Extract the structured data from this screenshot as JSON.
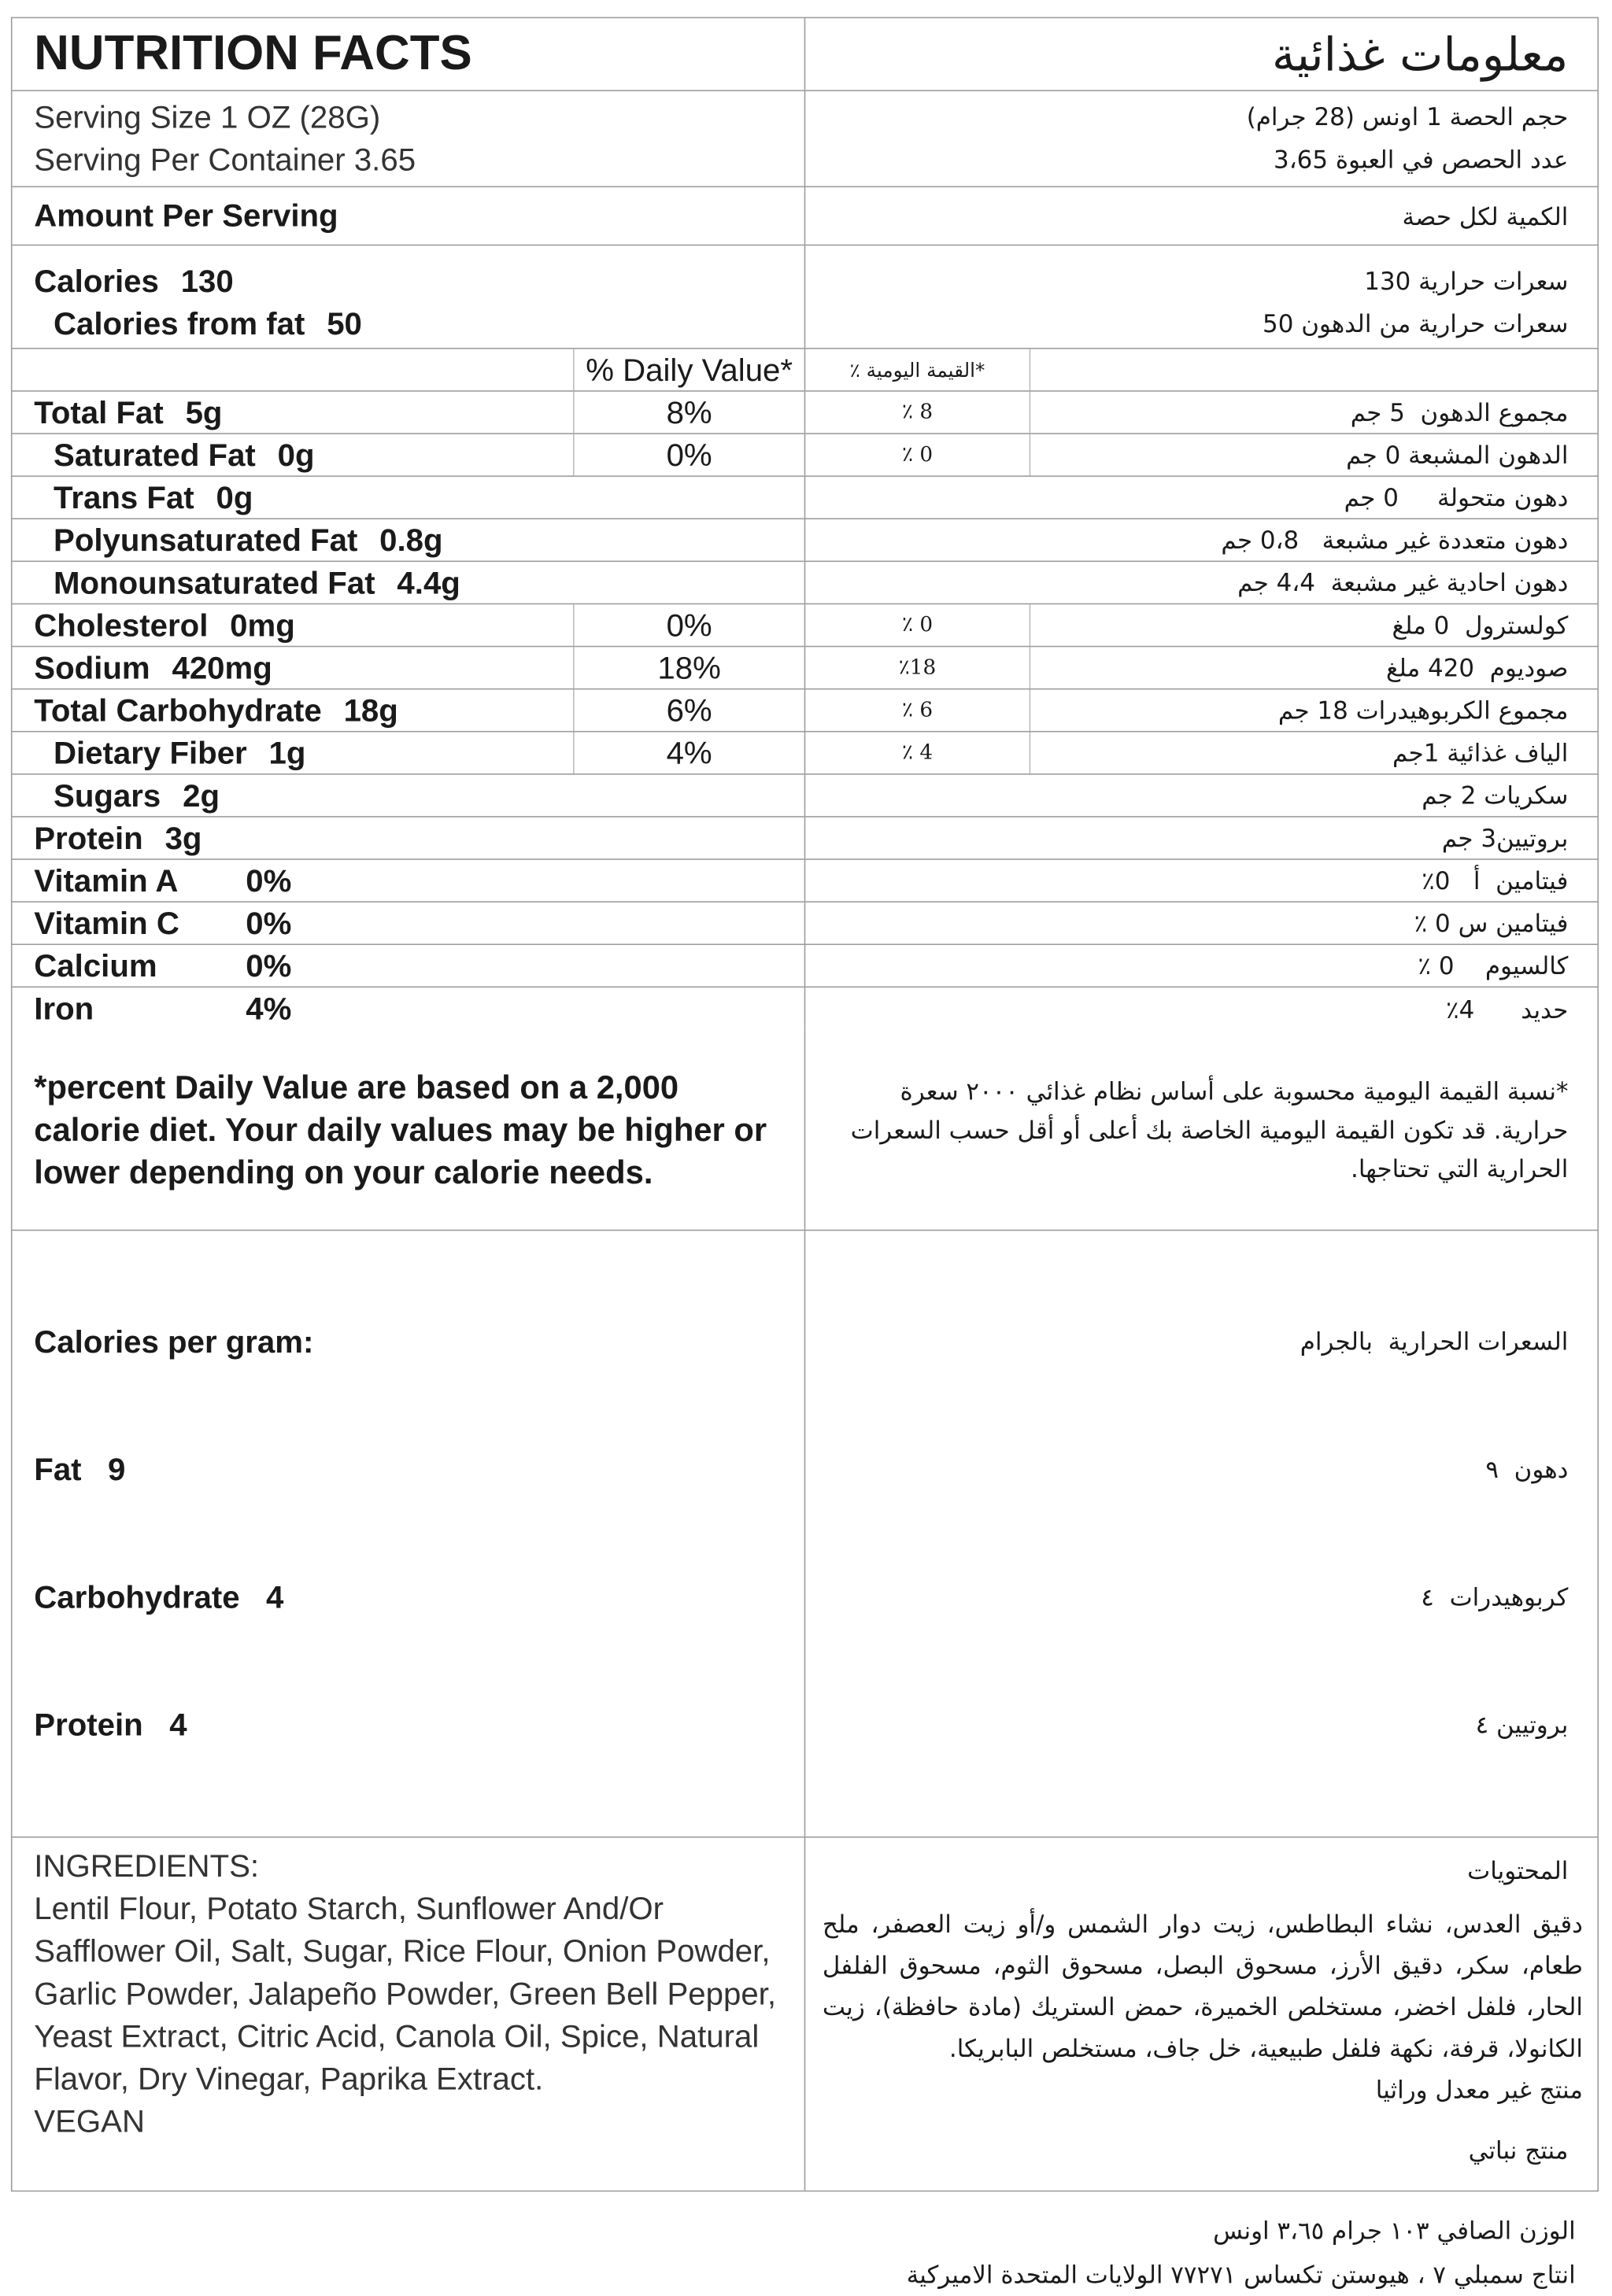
{
  "header": {
    "title_en": "NUTRITION FACTS",
    "title_ar": "معلومات غذائية"
  },
  "serving": {
    "size_en": "Serving Size 1 OZ (28G)",
    "per_container_en": "Serving Per Container 3.65",
    "size_ar": "حجم الحصة 1 اونس (28 جرام)",
    "per_container_ar": "عدد الحصص في العبوة  3،65"
  },
  "amount": {
    "en": "Amount Per Serving",
    "ar": "الكمية لكل حصة"
  },
  "calories": {
    "label_en": "Calories",
    "value": "130",
    "fat_label_en": "Calories from fat",
    "fat_value": "50",
    "ar": "سعرات حرارية  130",
    "fat_ar": "سعرات حرارية من الدهون 50"
  },
  "dv_header": {
    "en": "% Daily Value*",
    "ar": "٪ القيمة اليومية*"
  },
  "nutrients": [
    {
      "label": "Total Fat",
      "amount": "5g",
      "dv": "8%",
      "ar": "مجموع الدهون  5 جم",
      "ar_dv": "٪ 8"
    },
    {
      "label": "Saturated Fat",
      "amount": "0g",
      "dv": "0%",
      "ar": "الدهون المشبعة 0 جم",
      "ar_dv": "٪ 0"
    },
    {
      "label": "Trans Fat",
      "amount": "0g",
      "ar": "دهون متحولة     0 جم"
    },
    {
      "label": "Polyunsaturated Fat",
      "amount": "0.8g",
      "ar": "دهون متعددة غير مشبعة   0،8 جم"
    },
    {
      "label": "Monounsaturated Fat",
      "amount": "4.4g",
      "ar": "دهون احادية غير مشبعة  4،4 جم"
    },
    {
      "label": "Cholesterol",
      "amount": "0mg",
      "dv": "0%",
      "ar": "كولسترول  0 ملغ",
      "ar_dv": "٪  0"
    },
    {
      "label": "Sodium",
      "amount": "420mg",
      "dv": "18%",
      "ar": "صوديوم  420 ملغ",
      "ar_dv": "٪18"
    },
    {
      "label": "Total Carbohydrate",
      "amount": "18g",
      "dv": "6%",
      "ar": "مجموع الكربوهيدرات 18 جم",
      "ar_dv": "٪  6"
    },
    {
      "label": "Dietary Fiber",
      "amount": "1g",
      "dv": "4%",
      "ar": "الياف غذائية 1جم",
      "ar_dv": "٪ 4"
    },
    {
      "label": "Sugars",
      "amount": "2g",
      "ar": "سكريات 2 جم"
    },
    {
      "label": "Protein",
      "amount": "3g",
      "ar": "بروتيين3 جم"
    },
    {
      "label": "Vitamin A",
      "amount": "0%",
      "ar": "فيتامين  أ   0٪"
    },
    {
      "label": "Vitamin C",
      "amount": "0%",
      "ar": "فيتامين س 0 ٪"
    },
    {
      "label": "Calcium",
      "amount": "0%",
      "ar": "كالسيوم    0 ٪"
    },
    {
      "label": "Iron",
      "amount": "4%",
      "ar": "حديد      4٪"
    }
  ],
  "footnote": {
    "en": "*percent Daily Value are based on a 2,000 calorie diet. Your daily values may be higher or lower depending on your calorie needs.",
    "ar": "*نسبة القيمة اليومية محسوبة على أساس نظام غذائي ٢٠٠٠ سعرة حرارية. قد تكون القيمة اليومية الخاصة بك أعلى أو أقل حسب السعرات الحرارية التي تحتاجها."
  },
  "cal_per_gram": {
    "title_en": "Calories per gram:",
    "fat_en": "Fat   9",
    "carb_en": "Carbohydrate   4",
    "protein_en": "Protein   4",
    "title_ar": "السعرات الحرارية  بالجرام",
    "fat_ar": "دهون  ٩",
    "carb_ar": "كربوهيدرات  ٤",
    "protein_ar": "بروتيين ٤"
  },
  "ingredients": {
    "title_en": "INGREDIENTS:",
    "text_en": "Lentil Flour, Potato Starch, Sunflower And/Or Safflower Oil, Salt, Sugar, Rice Flour, Onion Powder, Garlic Powder, Jalapeño Powder, Green Bell Pepper, Yeast Extract, Citric Acid, Canola Oil, Spice, Natural Flavor, Dry Vinegar, Paprika Extract.",
    "vegan_en": "VEGAN",
    "title_ar": "المحتويات",
    "text_ar": "دقيق العدس، نشاء البطاطس، زيت دوار الشمس و/أو زيت العصفر، ملح طعام، سكر، دقيق الأرز، مسحوق البصل، مسحوق الثوم، مسحوق الفلفل الحار، فلفل اخضر، مستخلص الخميرة، حمض الستريك (مادة حافظة)، زيت الكانولا، قرفة، نكهة فلفل طبيعية، خل جاف، مستخلص البابريكا.",
    "non_gmo_ar": "منتج غير معدل وراثيا",
    "vegan_ar": "منتج نباتي"
  },
  "footer": {
    "net_weight_ar": "الوزن الصافي  ١٠٣ جرام  ٣،٦٥ اونس",
    "producer_ar": "انتاج سمبلي ٧ ، هيوستن تكساس ٧٧٢٧١ الولايات المتحدة الاميركية"
  }
}
